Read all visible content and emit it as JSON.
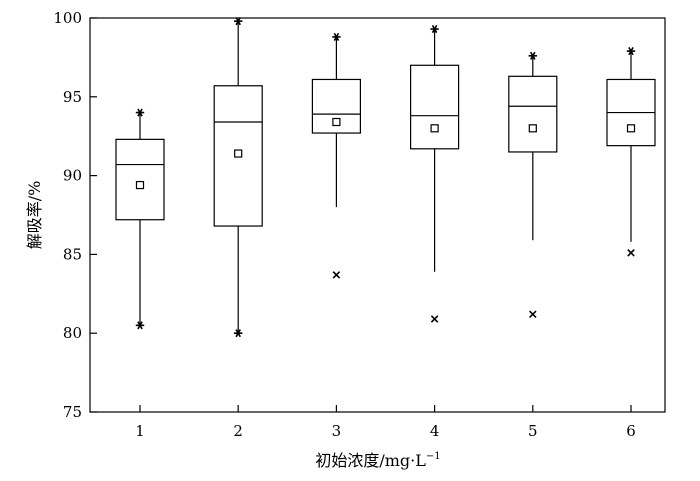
{
  "chart_data": {
    "type": "box",
    "xlabel": "初始浓度/mg·L",
    "xlabel_superscript": "−1",
    "ylabel": "解吸率/%",
    "ylim": [
      75,
      100
    ],
    "yticks": [
      75,
      80,
      85,
      90,
      95,
      100
    ],
    "categories": [
      "1",
      "2",
      "3",
      "4",
      "5",
      "6"
    ],
    "boxes": [
      {
        "category": "1",
        "whisker_low": 80.5,
        "q1": 87.2,
        "median": 90.7,
        "q3": 92.3,
        "whisker_high": 94.0,
        "mean": 89.4,
        "max_marker": 94.0,
        "min_marker": 80.5,
        "outliers": []
      },
      {
        "category": "2",
        "whisker_low": 80.0,
        "q1": 86.8,
        "median": 93.4,
        "q3": 95.7,
        "whisker_high": 99.8,
        "mean": 91.4,
        "max_marker": 99.8,
        "min_marker": 80.0,
        "outliers": []
      },
      {
        "category": "3",
        "whisker_low": 88.0,
        "q1": 92.7,
        "median": 93.9,
        "q3": 96.1,
        "whisker_high": 98.8,
        "mean": 93.4,
        "max_marker": 98.8,
        "min_marker": null,
        "outliers": [
          83.7
        ]
      },
      {
        "category": "4",
        "whisker_low": 83.9,
        "q1": 91.7,
        "median": 93.8,
        "q3": 97.0,
        "whisker_high": 99.3,
        "mean": 93.0,
        "max_marker": 99.3,
        "min_marker": null,
        "outliers": [
          80.9
        ]
      },
      {
        "category": "5",
        "whisker_low": 85.9,
        "q1": 91.5,
        "median": 94.4,
        "q3": 96.3,
        "whisker_high": 97.6,
        "mean": 93.0,
        "max_marker": 97.6,
        "min_marker": null,
        "outliers": [
          81.2
        ]
      },
      {
        "category": "6",
        "whisker_low": 85.8,
        "q1": 91.9,
        "median": 94.0,
        "q3": 96.1,
        "whisker_high": 97.9,
        "mean": 93.0,
        "max_marker": 97.9,
        "min_marker": null,
        "outliers": [
          85.1
        ]
      }
    ],
    "grid": false,
    "legend": "none"
  }
}
